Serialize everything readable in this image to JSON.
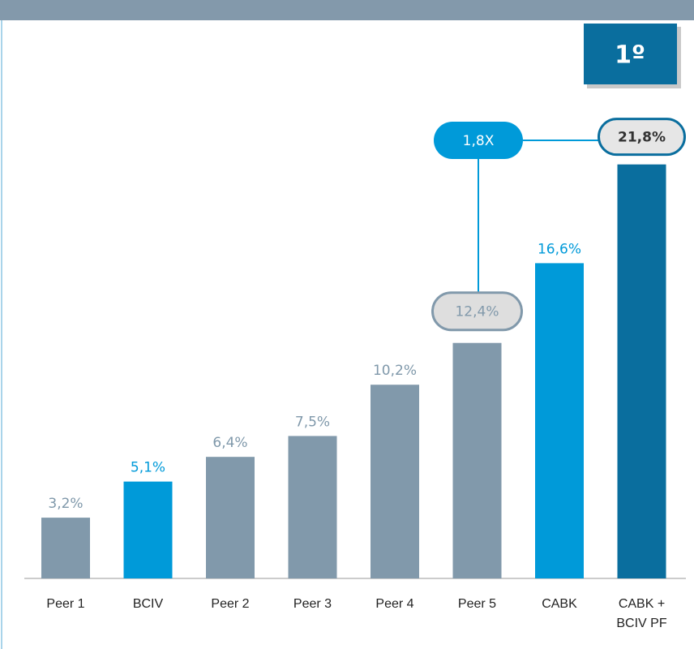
{
  "chart_data": {
    "type": "bar",
    "badge": "1º",
    "annotations": [
      "1,8X"
    ],
    "categories": [
      "Peer 1",
      "BCIV",
      "Peer 2",
      "Peer 3",
      "Peer 4",
      "Peer 5",
      "CABK",
      "CABK + BCIV PF"
    ],
    "values": [
      3.2,
      5.1,
      6.4,
      7.5,
      10.2,
      12.4,
      16.6,
      21.8
    ],
    "value_labels": [
      "3,2%",
      "5,1%",
      "6,4%",
      "7,5%",
      "10,2%",
      "12,4%",
      "16,6%",
      "21,8%"
    ],
    "colors": [
      "#8199ab",
      "#009ad9",
      "#8199ab",
      "#8199ab",
      "#8199ab",
      "#8199ab",
      "#009ad9",
      "#0a6e9e"
    ],
    "ylim": [
      0,
      22
    ]
  }
}
